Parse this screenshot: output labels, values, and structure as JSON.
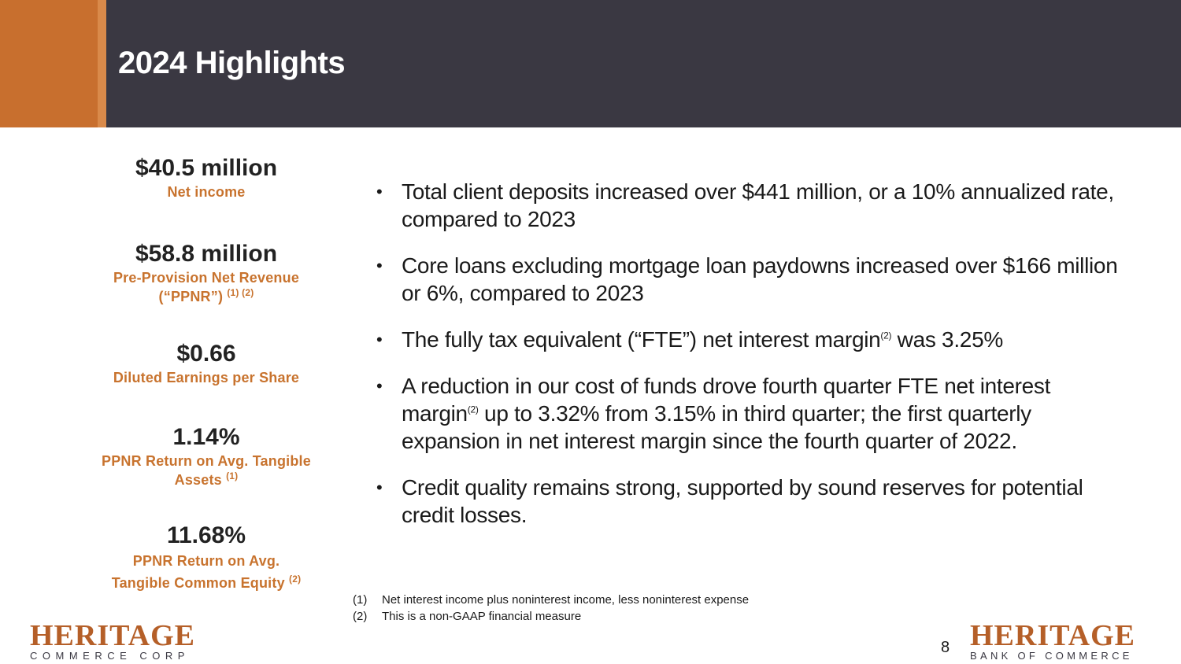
{
  "header": {
    "title": "2024 Highlights"
  },
  "stats": [
    {
      "value": "$40.5 million",
      "label": "Net income",
      "notes": ""
    },
    {
      "value": "$58.8 million",
      "label_line1": "Pre-Provision Net Revenue",
      "label_line2": "(“PPNR”)",
      "notes": "(1) (2)"
    },
    {
      "value": "$0.66",
      "label": "Diluted Earnings per Share",
      "notes": ""
    },
    {
      "value": "1.14%",
      "label_line1": "PPNR Return on Avg. Tangible",
      "label_line2": "Assets",
      "notes": "(1)"
    },
    {
      "value": "11.68%",
      "label_line1": "PPNR Return on Avg.",
      "label_line2": "Tangible Common Equity",
      "notes": "(2)"
    }
  ],
  "bullets": [
    {
      "text": "Total client deposits increased over $441 million, or a 10% annualized rate, compared to 2023"
    },
    {
      "text": "Core loans excluding mortgage loan paydowns increased over $166 million or 6%, compared to 2023"
    },
    {
      "text_before": "The fully tax equivalent (“FTE”) net interest margin",
      "sup": "(2)",
      "text_after": " was 3.25%"
    },
    {
      "text_line1": "A reduction in our cost of funds drove fourth quarter FTE net interest",
      "text_before": "margin",
      "sup": "(2)",
      "text_after": " up to 3.32% from 3.15% in third quarter; the first quarterly",
      "text_line3": "expansion in net interest margin since the fourth quarter of 2022."
    },
    {
      "text": "Credit quality remains strong, supported by sound reserves for potential credit losses."
    }
  ],
  "footnotes": [
    {
      "num": "(1)",
      "text": "Net interest income plus noninterest income, less noninterest expense"
    },
    {
      "num": "(2)",
      "text": "This is a non-GAAP financial measure"
    }
  ],
  "logos": {
    "left": {
      "main": "HERITAGE",
      "sub": "COMMERCE CORP"
    },
    "right": {
      "main": "HERITAGE",
      "sub": "BANK OF COMMERCE"
    }
  },
  "page_number": "8",
  "colors": {
    "header_bg": "#3a3842",
    "accent": "#c86f2e",
    "label": "#c8732e",
    "logo": "#b55f28"
  }
}
